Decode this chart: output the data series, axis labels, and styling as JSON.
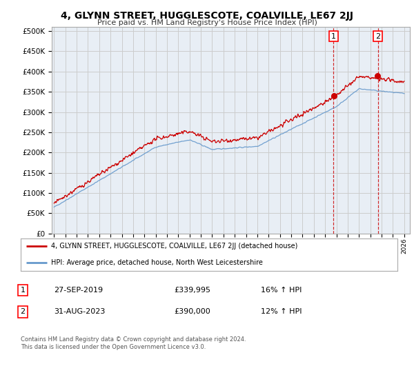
{
  "title": "4, GLYNN STREET, HUGGLESCOTE, COALVILLE, LE67 2JJ",
  "subtitle": "Price paid vs. HM Land Registry's House Price Index (HPI)",
  "ylabel_ticks": [
    "£0",
    "£50K",
    "£100K",
    "£150K",
    "£200K",
    "£250K",
    "£300K",
    "£350K",
    "£400K",
    "£450K",
    "£500K"
  ],
  "ytick_values": [
    0,
    50000,
    100000,
    150000,
    200000,
    250000,
    300000,
    350000,
    400000,
    450000,
    500000
  ],
  "ylim": [
    0,
    510000
  ],
  "xlim_start": 1994.8,
  "xlim_end": 2026.5,
  "xtick_years": [
    1995,
    1996,
    1997,
    1998,
    1999,
    2000,
    2001,
    2002,
    2003,
    2004,
    2005,
    2006,
    2007,
    2008,
    2009,
    2010,
    2011,
    2012,
    2013,
    2014,
    2015,
    2016,
    2017,
    2018,
    2019,
    2020,
    2021,
    2022,
    2023,
    2024,
    2025,
    2026
  ],
  "red_color": "#cc0000",
  "blue_color": "#6699cc",
  "grid_color": "#cccccc",
  "bg_color": "#ffffff",
  "plot_bg_color": "#e8eef5",
  "vline1_x": 2019.75,
  "vline2_x": 2023.67,
  "sale1_y": 339995,
  "sale2_y": 390000,
  "legend_line1": "4, GLYNN STREET, HUGGLESCOTE, COALVILLE, LE67 2JJ (detached house)",
  "legend_line2": "HPI: Average price, detached house, North West Leicestershire",
  "note1_label": "1",
  "note1_date": "27-SEP-2019",
  "note1_price": "£339,995",
  "note1_hpi": "16% ↑ HPI",
  "note2_label": "2",
  "note2_date": "31-AUG-2023",
  "note2_price": "£390,000",
  "note2_hpi": "12% ↑ HPI",
  "footer": "Contains HM Land Registry data © Crown copyright and database right 2024.\nThis data is licensed under the Open Government Licence v3.0."
}
